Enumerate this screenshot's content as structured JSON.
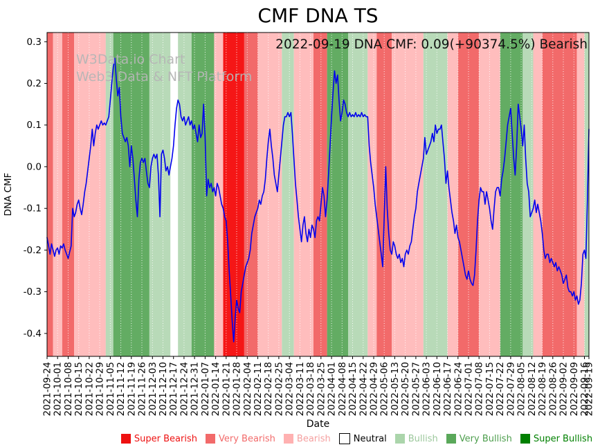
{
  "title": "CMF DNA TS",
  "annotation": "2022-09-19 DNA CMF: 0.09(+90374.5%) Bearish",
  "watermark": {
    "line1": "W3Data.io Chart",
    "line2": "Web3 Data & NFT Platform"
  },
  "legend": {
    "items": [
      {
        "label": "Super Bearish",
        "color": "#ee1111",
        "text_color": "#ee1111"
      },
      {
        "label": "Very Bearish",
        "color": "#f26a6a",
        "text_color": "#f26a6a"
      },
      {
        "label": "Bearish",
        "color": "#ffb1b1",
        "text_color": "#f59f9f"
      },
      {
        "label": "Neutral",
        "color": "#ffffff",
        "text_color": "#000000",
        "border": "#000000"
      },
      {
        "label": "Bullish",
        "color": "#abd5ab",
        "text_color": "#9cc89c"
      },
      {
        "label": "Very Bullish",
        "color": "#5aa85a",
        "text_color": "#4d9e4d"
      },
      {
        "label": "Super Bullish",
        "color": "#008000",
        "text_color": "#008000"
      }
    ]
  },
  "chart_data": {
    "type": "line",
    "title": "CMF DNA TS",
    "xlabel": "Date",
    "ylabel": "DNA CMF",
    "grid": true,
    "line_color": "#0000ee",
    "ylim": [
      -0.455,
      0.322
    ],
    "x_range_days": 360,
    "y_ticks": [
      {
        "value": 0.3,
        "label": "0.3"
      },
      {
        "value": 0.2,
        "label": "0.2"
      },
      {
        "value": 0.1,
        "label": "0.1"
      },
      {
        "value": 0.0,
        "label": "0.0"
      },
      {
        "value": -0.1,
        "label": "-0.1"
      },
      {
        "value": -0.2,
        "label": "-0.2"
      },
      {
        "value": -0.3,
        "label": "-0.3"
      },
      {
        "value": -0.4,
        "label": "-0.4"
      }
    ],
    "x_tick_labels": [
      "2021-09-24",
      "2021-10-01",
      "2021-10-08",
      "2021-10-15",
      "2021-10-22",
      "2021-10-29",
      "2021-11-05",
      "2021-11-12",
      "2021-11-19",
      "2021-11-26",
      "2021-12-03",
      "2021-12-10",
      "2021-12-17",
      "2021-12-24",
      "2021-12-31",
      "2022-01-07",
      "2022-01-14",
      "2022-01-21",
      "2022-01-28",
      "2022-02-04",
      "2022-02-11",
      "2022-02-18",
      "2022-02-25",
      "2022-03-04",
      "2022-03-11",
      "2022-03-18",
      "2022-03-25",
      "2022-04-01",
      "2022-04-08",
      "2022-04-15",
      "2022-04-22",
      "2022-04-29",
      "2022-05-06",
      "2022-05-13",
      "2022-05-20",
      "2022-05-27",
      "2022-06-03",
      "2022-06-10",
      "2022-06-17",
      "2022-06-24",
      "2022-07-01",
      "2022-07-08",
      "2022-07-15",
      "2022-07-22",
      "2022-07-29",
      "2022-08-05",
      "2022-08-12",
      "2022-08-19",
      "2022-08-26",
      "2022-09-02",
      "2022-09-09",
      "2022-09-16",
      "2022-09-19"
    ],
    "values": [
      -0.17,
      -0.19,
      -0.21,
      -0.185,
      -0.2,
      -0.215,
      -0.2,
      -0.195,
      -0.21,
      -0.19,
      -0.195,
      -0.185,
      -0.2,
      -0.21,
      -0.22,
      -0.205,
      -0.19,
      -0.1,
      -0.12,
      -0.11,
      -0.09,
      -0.08,
      -0.1,
      -0.115,
      -0.09,
      -0.06,
      -0.04,
      -0.01,
      0.02,
      0.05,
      0.09,
      0.05,
      0.08,
      0.1,
      0.09,
      0.1,
      0.11,
      0.1,
      0.105,
      0.1,
      0.11,
      0.12,
      0.16,
      0.2,
      0.24,
      0.26,
      0.21,
      0.17,
      0.19,
      0.12,
      0.08,
      0.07,
      0.06,
      0.07,
      0.05,
      0.0,
      0.05,
      0.02,
      -0.03,
      -0.08,
      -0.12,
      -0.03,
      0.01,
      0.02,
      0.01,
      0.02,
      -0.01,
      -0.04,
      -0.05,
      0.0,
      0.02,
      0.03,
      0.02,
      0.03,
      -0.02,
      -0.12,
      0.03,
      0.04,
      0.02,
      -0.01,
      0.0,
      -0.02,
      0.0,
      0.02,
      0.05,
      0.1,
      0.14,
      0.16,
      0.15,
      0.12,
      0.11,
      0.12,
      0.1,
      0.11,
      0.12,
      0.1,
      0.11,
      0.09,
      0.1,
      0.08,
      0.06,
      0.1,
      0.07,
      0.08,
      0.15,
      0.07,
      -0.07,
      -0.03,
      -0.05,
      -0.04,
      -0.06,
      -0.05,
      -0.07,
      -0.04,
      -0.05,
      -0.07,
      -0.09,
      -0.1,
      -0.12,
      -0.13,
      -0.18,
      -0.25,
      -0.31,
      -0.37,
      -0.42,
      -0.36,
      -0.32,
      -0.34,
      -0.35,
      -0.3,
      -0.28,
      -0.26,
      -0.24,
      -0.23,
      -0.22,
      -0.2,
      -0.16,
      -0.14,
      -0.12,
      -0.11,
      -0.1,
      -0.08,
      -0.09,
      -0.07,
      -0.06,
      -0.03,
      0.02,
      0.06,
      0.09,
      0.05,
      0.02,
      -0.02,
      -0.04,
      -0.06,
      -0.02,
      0.02,
      0.06,
      0.1,
      0.12,
      0.12,
      0.13,
      0.12,
      0.13,
      0.08,
      0.02,
      -0.04,
      -0.08,
      -0.12,
      -0.15,
      -0.18,
      -0.14,
      -0.12,
      -0.16,
      -0.18,
      -0.15,
      -0.17,
      -0.14,
      -0.15,
      -0.17,
      -0.13,
      -0.12,
      -0.13,
      -0.09,
      -0.05,
      -0.07,
      -0.12,
      -0.08,
      -0.02,
      0.05,
      0.12,
      0.18,
      0.23,
      0.2,
      0.22,
      0.16,
      0.11,
      0.13,
      0.16,
      0.15,
      0.13,
      0.12,
      0.13,
      0.12,
      0.125,
      0.12,
      0.13,
      0.12,
      0.125,
      0.12,
      0.13,
      0.12,
      0.125,
      0.12,
      0.12,
      0.05,
      0.01,
      -0.02,
      -0.05,
      -0.09,
      -0.12,
      -0.15,
      -0.18,
      -0.21,
      -0.24,
      -0.12,
      0.0,
      -0.1,
      -0.16,
      -0.2,
      -0.21,
      -0.18,
      -0.19,
      -0.21,
      -0.22,
      -0.21,
      -0.23,
      -0.22,
      -0.24,
      -0.21,
      -0.2,
      -0.21,
      -0.19,
      -0.18,
      -0.15,
      -0.12,
      -0.1,
      -0.06,
      -0.04,
      -0.02,
      0.0,
      0.02,
      0.07,
      0.03,
      0.04,
      0.05,
      0.06,
      0.08,
      0.06,
      0.1,
      0.08,
      0.09,
      0.09,
      0.1,
      0.06,
      0.02,
      -0.04,
      -0.01,
      -0.05,
      -0.08,
      -0.11,
      -0.13,
      -0.16,
      -0.14,
      -0.17,
      -0.18,
      -0.2,
      -0.22,
      -0.24,
      -0.26,
      -0.27,
      -0.25,
      -0.27,
      -0.28,
      -0.285,
      -0.26,
      -0.2,
      -0.13,
      -0.08,
      -0.05,
      -0.06,
      -0.06,
      -0.09,
      -0.06,
      -0.08,
      -0.1,
      -0.13,
      -0.15,
      -0.1,
      -0.06,
      -0.05,
      -0.05,
      -0.07,
      -0.03,
      -0.01,
      0.02,
      0.06,
      0.1,
      0.12,
      0.14,
      0.08,
      0.02,
      -0.02,
      0.05,
      0.15,
      0.12,
      0.09,
      0.05,
      0.1,
      0.02,
      -0.04,
      -0.06,
      -0.12,
      -0.11,
      -0.1,
      -0.08,
      -0.11,
      -0.09,
      -0.11,
      -0.13,
      -0.16,
      -0.2,
      -0.22,
      -0.21,
      -0.21,
      -0.23,
      -0.22,
      -0.23,
      -0.24,
      -0.23,
      -0.25,
      -0.24,
      -0.25,
      -0.26,
      -0.28,
      -0.27,
      -0.26,
      -0.29,
      -0.3,
      -0.3,
      -0.31,
      -0.3,
      -0.32,
      -0.31,
      -0.33,
      -0.32,
      -0.28,
      -0.21,
      -0.2,
      -0.22,
      -0.08,
      0.09
    ],
    "band_colors": {
      "super_bearish": "#f51616",
      "very_bearish": "#f26a6a",
      "bearish": "#ffbdbd",
      "neutral": "#ffffff",
      "bullish": "#b8dab8",
      "very_bullish": "#63ac63",
      "super_bullish": "#1b8a1b"
    },
    "bands": [
      {
        "start": 0,
        "end": 4,
        "level": "very_bearish"
      },
      {
        "start": 4,
        "end": 10,
        "level": "bearish"
      },
      {
        "start": 10,
        "end": 18,
        "level": "very_bearish"
      },
      {
        "start": 18,
        "end": 39,
        "level": "bearish"
      },
      {
        "start": 39,
        "end": 44,
        "level": "bullish"
      },
      {
        "start": 44,
        "end": 68,
        "level": "very_bullish"
      },
      {
        "start": 68,
        "end": 82,
        "level": "bullish"
      },
      {
        "start": 82,
        "end": 87,
        "level": "neutral"
      },
      {
        "start": 87,
        "end": 96,
        "level": "bullish"
      },
      {
        "start": 96,
        "end": 111,
        "level": "very_bullish"
      },
      {
        "start": 111,
        "end": 117,
        "level": "bearish"
      },
      {
        "start": 117,
        "end": 131,
        "level": "super_bearish"
      },
      {
        "start": 131,
        "end": 140,
        "level": "very_bearish"
      },
      {
        "start": 140,
        "end": 156,
        "level": "bearish"
      },
      {
        "start": 156,
        "end": 164,
        "level": "bullish"
      },
      {
        "start": 164,
        "end": 177,
        "level": "bearish"
      },
      {
        "start": 177,
        "end": 186,
        "level": "very_bearish"
      },
      {
        "start": 186,
        "end": 200,
        "level": "very_bullish"
      },
      {
        "start": 200,
        "end": 213,
        "level": "bullish"
      },
      {
        "start": 213,
        "end": 219,
        "level": "bearish"
      },
      {
        "start": 219,
        "end": 229,
        "level": "very_bearish"
      },
      {
        "start": 229,
        "end": 250,
        "level": "bearish"
      },
      {
        "start": 250,
        "end": 266,
        "level": "bullish"
      },
      {
        "start": 266,
        "end": 273,
        "level": "bearish"
      },
      {
        "start": 273,
        "end": 287,
        "level": "very_bearish"
      },
      {
        "start": 287,
        "end": 301,
        "level": "bearish"
      },
      {
        "start": 301,
        "end": 316,
        "level": "very_bullish"
      },
      {
        "start": 316,
        "end": 323,
        "level": "bullish"
      },
      {
        "start": 323,
        "end": 329,
        "level": "bearish"
      },
      {
        "start": 329,
        "end": 352,
        "level": "very_bearish"
      },
      {
        "start": 352,
        "end": 357,
        "level": "bearish"
      },
      {
        "start": 357,
        "end": 360,
        "level": "bullish"
      }
    ]
  }
}
